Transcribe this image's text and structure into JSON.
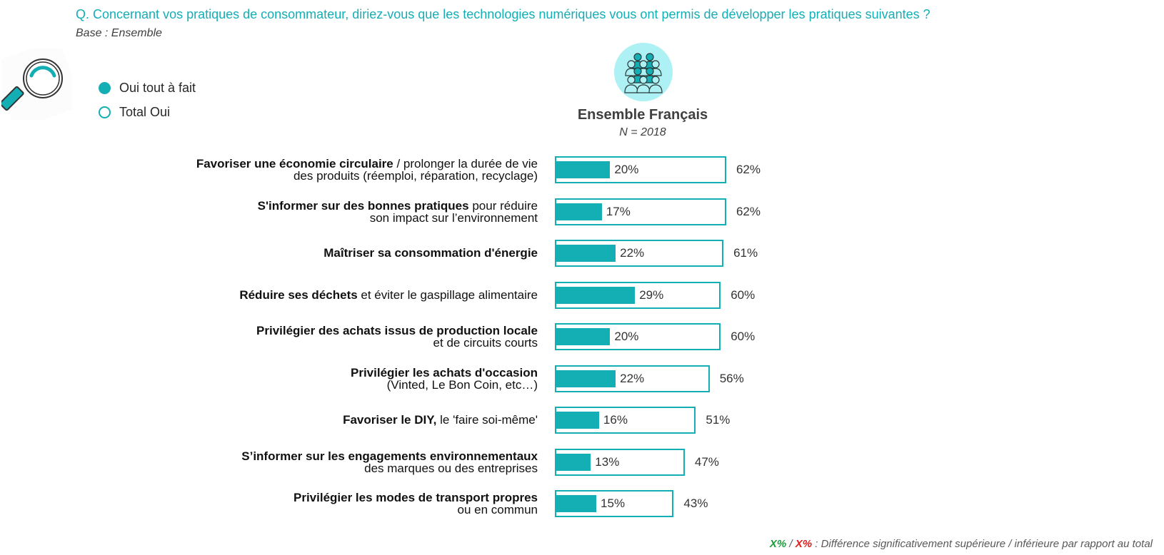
{
  "header": {
    "question": "Q. Concernant vos pratiques de consommateur, diriez-vous que les technologies numériques vous ont permis de développer les pratiques suivantes ?",
    "base": "Base : Ensemble"
  },
  "legend": [
    {
      "label": "Oui tout à fait",
      "style": "filled",
      "color": "#14aeb5"
    },
    {
      "label": "Total Oui",
      "style": "outline",
      "color": "#14aeb5"
    }
  ],
  "group": {
    "title": "Ensemble Français",
    "n": "N = 2018",
    "icon": "people-group-icon"
  },
  "icons": {
    "magnifier": "magnifier-icon"
  },
  "colors": {
    "accent": "#14aeb5",
    "green": "#1a9e3a",
    "red": "#e31b1b"
  },
  "chart_data": {
    "type": "bar",
    "orientation": "horizontal",
    "title": "Ensemble Français",
    "subtitle": "N = 2018",
    "categories": [
      {
        "bold": "Favoriser une économie circulaire",
        "rest": " / prolonger la durée de vie",
        "line2": "des produits (réemploi, réparation, recyclage)"
      },
      {
        "bold": "S'informer sur des bonnes pratiques",
        "rest": " pour réduire",
        "line2": "son impact sur l’environnement"
      },
      {
        "bold": "Maîtriser sa consommation d'énergie",
        "rest": "",
        "line2": ""
      },
      {
        "bold": "Réduire ses déchets",
        "rest": " et éviter le gaspillage alimentaire",
        "line2": ""
      },
      {
        "bold": "Privilégier des achats issus de production locale",
        "rest": "",
        "line2": "et de circuits courts"
      },
      {
        "bold": "Privilégier les achats d'occasion",
        "rest": "",
        "line2": "(Vinted, Le Bon Coin, etc…)"
      },
      {
        "bold": "Favoriser le DIY,",
        "rest": " le 'faire soi-même'",
        "line2": ""
      },
      {
        "bold": "S’informer sur les engagements environnementaux",
        "rest": "",
        "line2": "des marques ou des entreprises"
      },
      {
        "bold": "Privilégier les modes de transport propres",
        "rest": "",
        "line2": "ou en commun"
      }
    ],
    "series": [
      {
        "name": "Oui tout à fait",
        "values": [
          20,
          17,
          22,
          29,
          20,
          22,
          16,
          13,
          15
        ],
        "labels": [
          "20%",
          "17%",
          "22%",
          "29%",
          "20%",
          "22%",
          "16%",
          "13%",
          "15%"
        ]
      },
      {
        "name": "Total Oui",
        "values": [
          62,
          62,
          61,
          60,
          60,
          56,
          51,
          47,
          43
        ],
        "labels": [
          "62%",
          "62%",
          "61%",
          "60%",
          "60%",
          "56%",
          "51%",
          "47%",
          "43%"
        ]
      }
    ],
    "xlim": [
      0,
      100
    ],
    "unit": "%",
    "grid": false,
    "legend_position": "top-left"
  },
  "footnote": {
    "green": "X%",
    "sep": " / ",
    "red": "X%",
    "text": " : Différence significativement supérieure / inférieure par rapport au total"
  }
}
